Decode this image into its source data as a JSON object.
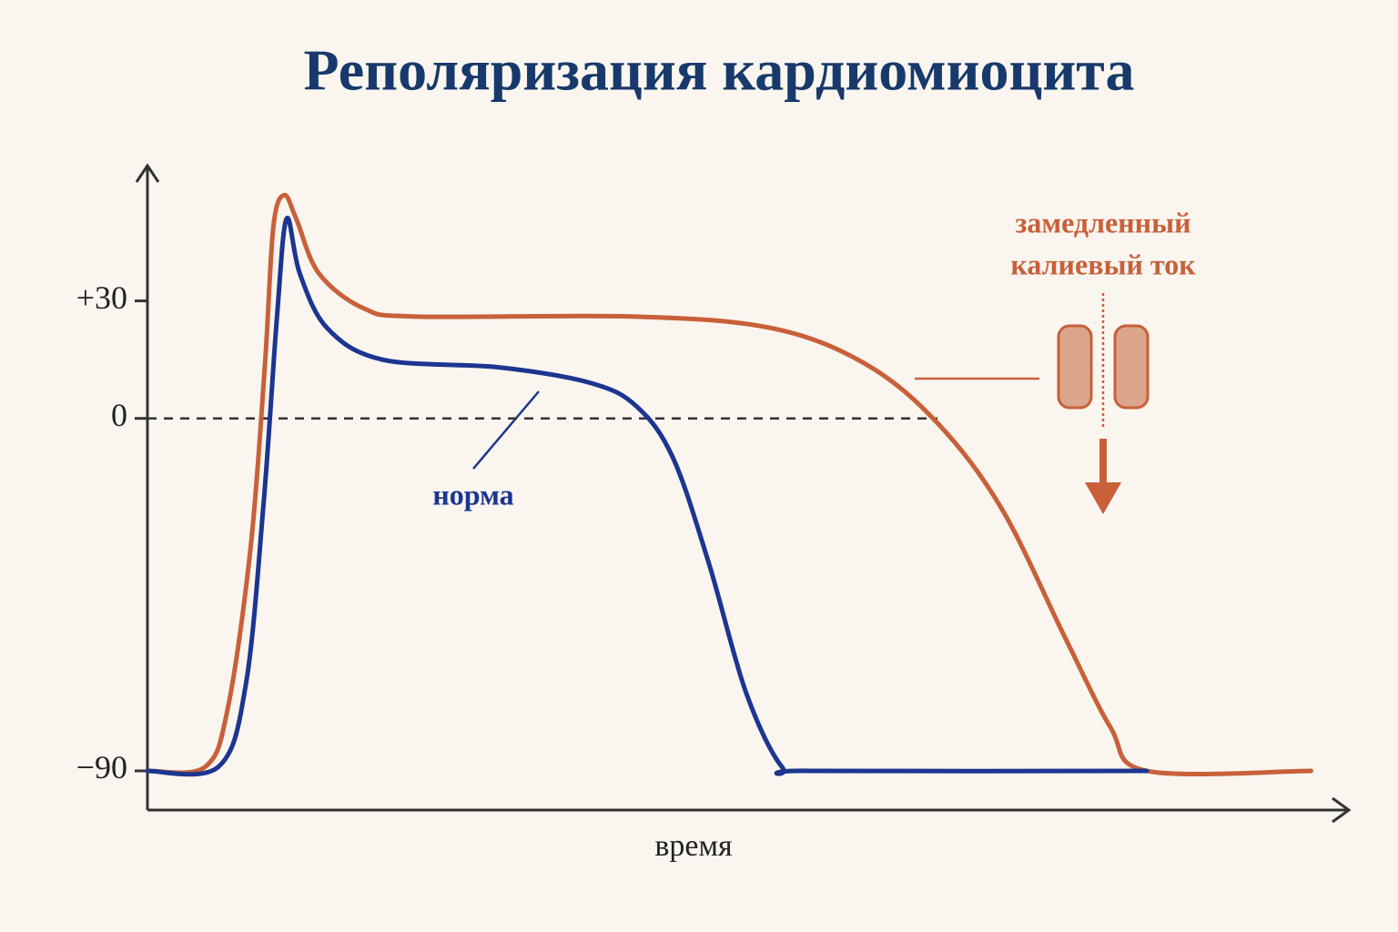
{
  "chart_data": {
    "type": "line",
    "title": "Реполяризация кардиомиоцита",
    "xlabel": "время",
    "xlim": [
      0,
      100
    ],
    "ylim": [
      -100,
      65
    ],
    "yticks": [
      {
        "value": 30,
        "label": "+30"
      },
      0,
      {
        "value": -90,
        "label": "−90"
      }
    ],
    "series": [
      {
        "name": "норма",
        "color": "#1c3590",
        "x": [
          0,
          5.9,
          8.2,
          9.7,
          10.8,
          11.6,
          12.7,
          15.0,
          19.6,
          29.4,
          37,
          40.8,
          43.8,
          46.8,
          49.9,
          52.9,
          55.2,
          83.3
        ],
        "values": [
          -90,
          -89,
          -68,
          -21,
          26,
          51,
          37,
          23,
          15,
          13,
          9,
          3,
          -10,
          -37,
          -70,
          -89,
          -90,
          -90
        ]
      },
      {
        "color": "#c8603a",
        "x": [
          0,
          4.8,
          6.7,
          8.6,
          9.8,
          10.5,
          11.4,
          12.4,
          14.3,
          18.1,
          22.6,
          40.8,
          52.1,
          59.8,
          65.8,
          71.2,
          76.5,
          80.3,
          83.3,
          97
        ],
        "values": [
          -90,
          -89,
          -74,
          -33,
          14,
          49,
          57,
          51,
          37,
          28,
          26,
          26,
          23,
          14,
          -1,
          -23,
          -56,
          -79,
          -90,
          -90
        ]
      }
    ],
    "annotations": [
      "замедленный",
      "калиевый ток"
    ]
  }
}
